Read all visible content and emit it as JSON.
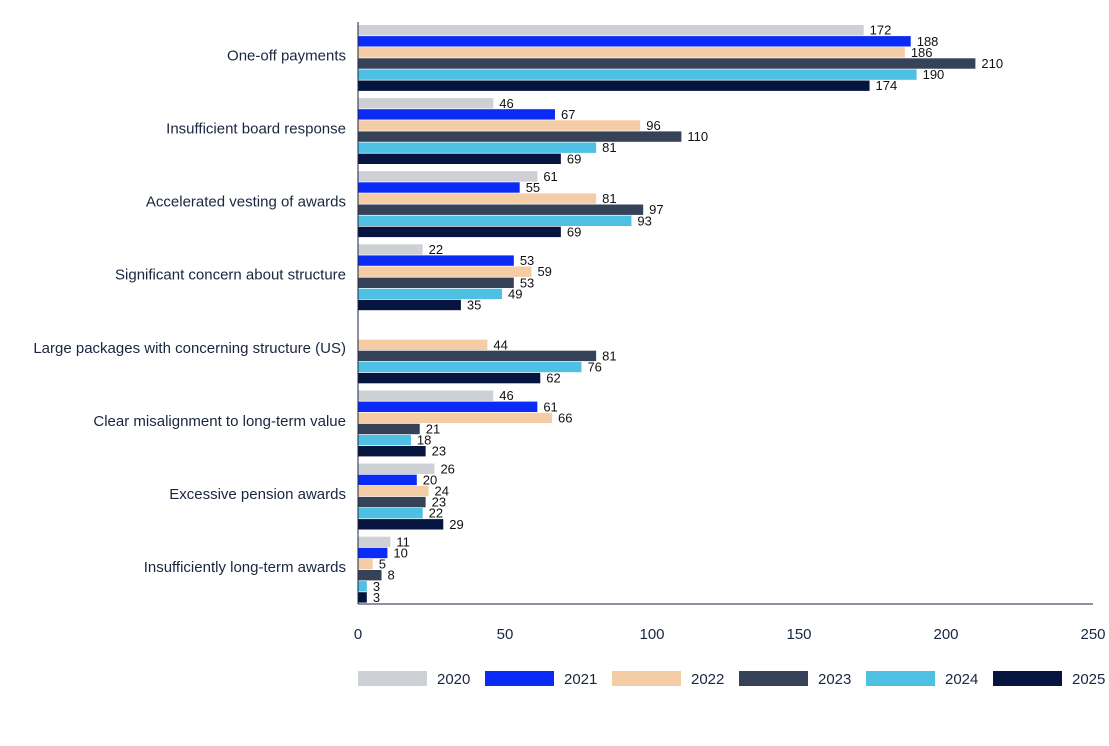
{
  "chart_data": {
    "type": "bar",
    "orientation": "horizontal",
    "categories": [
      "One-off payments",
      "Insufficient board response",
      "Accelerated vesting of awards",
      "Significant concern about structure",
      "Large packages with concerning structure (US)",
      "Clear misalignment to long-term value",
      "Excessive pension awards",
      "Insufficiently long-term awards"
    ],
    "series": [
      {
        "name": "2020",
        "color": "#cdd0d5",
        "values": [
          172,
          46,
          61,
          22,
          null,
          46,
          26,
          11
        ]
      },
      {
        "name": "2021",
        "color": "#0a2bf5",
        "values": [
          188,
          67,
          55,
          53,
          null,
          61,
          20,
          10
        ]
      },
      {
        "name": "2022",
        "color": "#f4cda6",
        "values": [
          186,
          96,
          81,
          59,
          44,
          66,
          24,
          5
        ]
      },
      {
        "name": "2023",
        "color": "#354258",
        "values": [
          210,
          110,
          97,
          53,
          81,
          21,
          23,
          8
        ]
      },
      {
        "name": "2024",
        "color": "#4ec0e4",
        "values": [
          190,
          81,
          93,
          49,
          76,
          18,
          22,
          3
        ]
      },
      {
        "name": "2025",
        "color": "#061440",
        "values": [
          174,
          69,
          69,
          35,
          62,
          23,
          29,
          3
        ]
      }
    ],
    "xlim": [
      0,
      250
    ],
    "xticks": [
      "0",
      "50",
      "100",
      "150",
      "200",
      "250"
    ],
    "title": "",
    "xlabel": "",
    "ylabel": "",
    "grid": false,
    "legend_position": "bottom"
  }
}
